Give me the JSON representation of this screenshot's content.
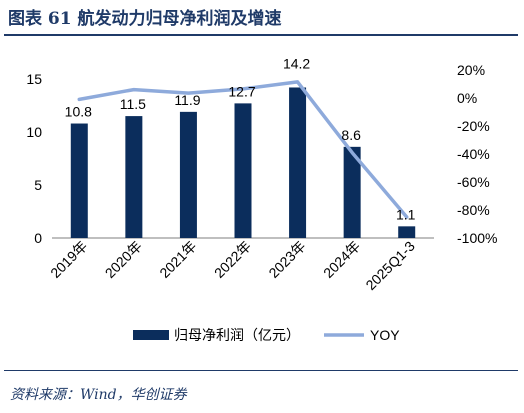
{
  "header": {
    "title": "图表 61    航发动力归母净利润及增速"
  },
  "footer": {
    "source": "资料来源：Wind，华创证券"
  },
  "chart_data": {
    "type": "bar",
    "categories": [
      "2019年",
      "2020年",
      "2021年",
      "2022年",
      "2023年",
      "2024年",
      "2025Q1-3"
    ],
    "series": [
      {
        "name": "归母净利润（亿元）",
        "type": "bar",
        "axis": "left",
        "color": "#0b2d5c",
        "values": [
          10.8,
          11.5,
          11.9,
          12.7,
          14.2,
          8.6,
          1.1
        ],
        "labels": [
          "10.8",
          "11.5",
          "11.9",
          "12.7",
          "14.2",
          "8.6",
          "1.1"
        ]
      },
      {
        "name": "YOY",
        "type": "line",
        "axis": "right",
        "color": "#8eaadb",
        "values": [
          -0.01,
          0.06,
          0.035,
          0.065,
          0.115,
          -0.39,
          -0.85
        ]
      }
    ],
    "y_left": {
      "min": 0,
      "max": 15,
      "ticks": [
        0,
        5,
        10,
        15
      ],
      "tick_labels": [
        "0",
        "5",
        "10",
        "15"
      ]
    },
    "y_right": {
      "min": -1.0,
      "max": 0.2,
      "ticks": [
        0.2,
        0.0,
        -0.2,
        -0.4,
        -0.6,
        -0.8,
        -1.0
      ],
      "tick_labels": [
        "20%",
        "0%",
        "-20%",
        "-40%",
        "-60%",
        "-80%",
        "-100%"
      ]
    },
    "xlabel": "",
    "ylabel": "",
    "grid": false,
    "legend_position": "bottom"
  }
}
